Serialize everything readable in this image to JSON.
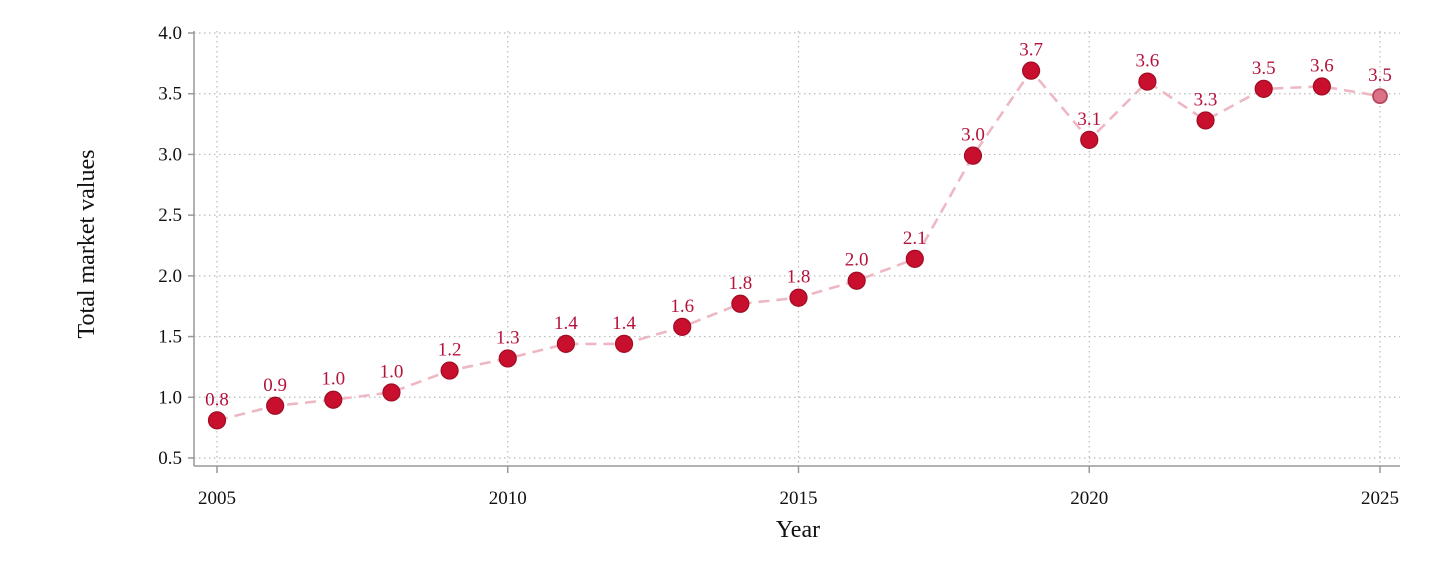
{
  "colors": {
    "marker": "#c8102e",
    "marker_edge": "#a00c24",
    "projected_marker": "#dc7288",
    "projected_edge": "#b5475e",
    "line": "#edb8c4",
    "data_label": "#b5123a",
    "grid": "#bbbbbb",
    "axis": "#999999"
  },
  "chart_data": {
    "type": "line",
    "title": "",
    "xlabel": "Year",
    "ylabel": "Total market values",
    "xlim": [
      2005,
      2025
    ],
    "ylim": [
      0.5,
      4.0
    ],
    "xticks": [
      2005,
      2010,
      2015,
      2020,
      2025
    ],
    "xtick_labels": [
      "2005",
      "2010",
      "2015",
      "2020",
      "2025"
    ],
    "yticks": [
      0.5,
      1.0,
      1.5,
      2.0,
      2.5,
      3.0,
      3.5,
      4.0
    ],
    "ytick_labels": [
      "0.5",
      "1.0",
      "1.5",
      "2.0",
      "2.5",
      "3.0",
      "3.5",
      "4.0"
    ],
    "grid": true,
    "line_style": "dashed",
    "series": [
      {
        "x": [
          2005,
          2006,
          2007,
          2008,
          2009,
          2010,
          2011,
          2012,
          2013,
          2014,
          2015,
          2016,
          2017,
          2018,
          2019,
          2020,
          2021,
          2022,
          2023,
          2024,
          2025
        ],
        "y": [
          0.81,
          0.93,
          0.98,
          1.04,
          1.22,
          1.32,
          1.44,
          1.44,
          1.58,
          1.77,
          1.82,
          1.96,
          2.14,
          2.99,
          3.69,
          3.12,
          3.6,
          3.28,
          3.54,
          3.56,
          3.48
        ],
        "labels": [
          "0.8",
          "0.9",
          "1.0",
          "1.0",
          "1.2",
          "1.3",
          "1.4",
          "1.4",
          "1.6",
          "1.8",
          "1.8",
          "2.0",
          "2.1",
          "3.0",
          "3.7",
          "3.1",
          "3.6",
          "3.3",
          "3.5",
          "3.6",
          "3.5"
        ],
        "projected_from_index": 20
      }
    ]
  }
}
